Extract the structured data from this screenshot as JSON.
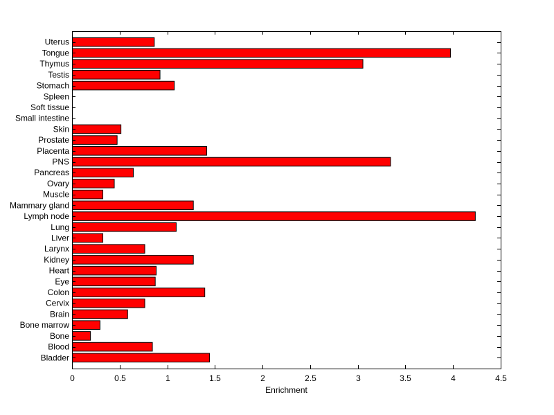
{
  "chart_data": {
    "type": "bar",
    "orientation": "horizontal",
    "title": "",
    "xlabel": "Enrichment",
    "ylabel": "",
    "xlim": [
      0,
      4.5
    ],
    "xticks": [
      "0",
      "0.5",
      "1",
      "1.5",
      "2",
      "2.5",
      "3",
      "3.5",
      "4",
      "4.5"
    ],
    "grid": false,
    "bar_color": "#ff0000",
    "bar_edge_color": "#000000",
    "categories": [
      "Bladder",
      "Blood",
      "Bone",
      "Bone marrow",
      "Brain",
      "Cervix",
      "Colon",
      "Eye",
      "Heart",
      "Kidney",
      "Larynx",
      "Liver",
      "Lung",
      "Lymph node",
      "Mammary gland",
      "Muscle",
      "Ovary",
      "Pancreas",
      "PNS",
      "Placenta",
      "Prostate",
      "Skin",
      "Small intestine",
      "Soft tissue",
      "Spleen",
      "Stomach",
      "Testis",
      "Thymus",
      "Tongue",
      "Uterus"
    ],
    "values": [
      1.44,
      0.84,
      0.19,
      0.29,
      0.58,
      0.76,
      1.39,
      0.87,
      0.88,
      1.27,
      0.76,
      0.32,
      1.09,
      4.23,
      1.27,
      0.32,
      0.44,
      0.64,
      3.34,
      1.41,
      0.47,
      0.51,
      0.0,
      0.0,
      0.0,
      1.07,
      0.92,
      3.05,
      3.97,
      0.86
    ]
  }
}
